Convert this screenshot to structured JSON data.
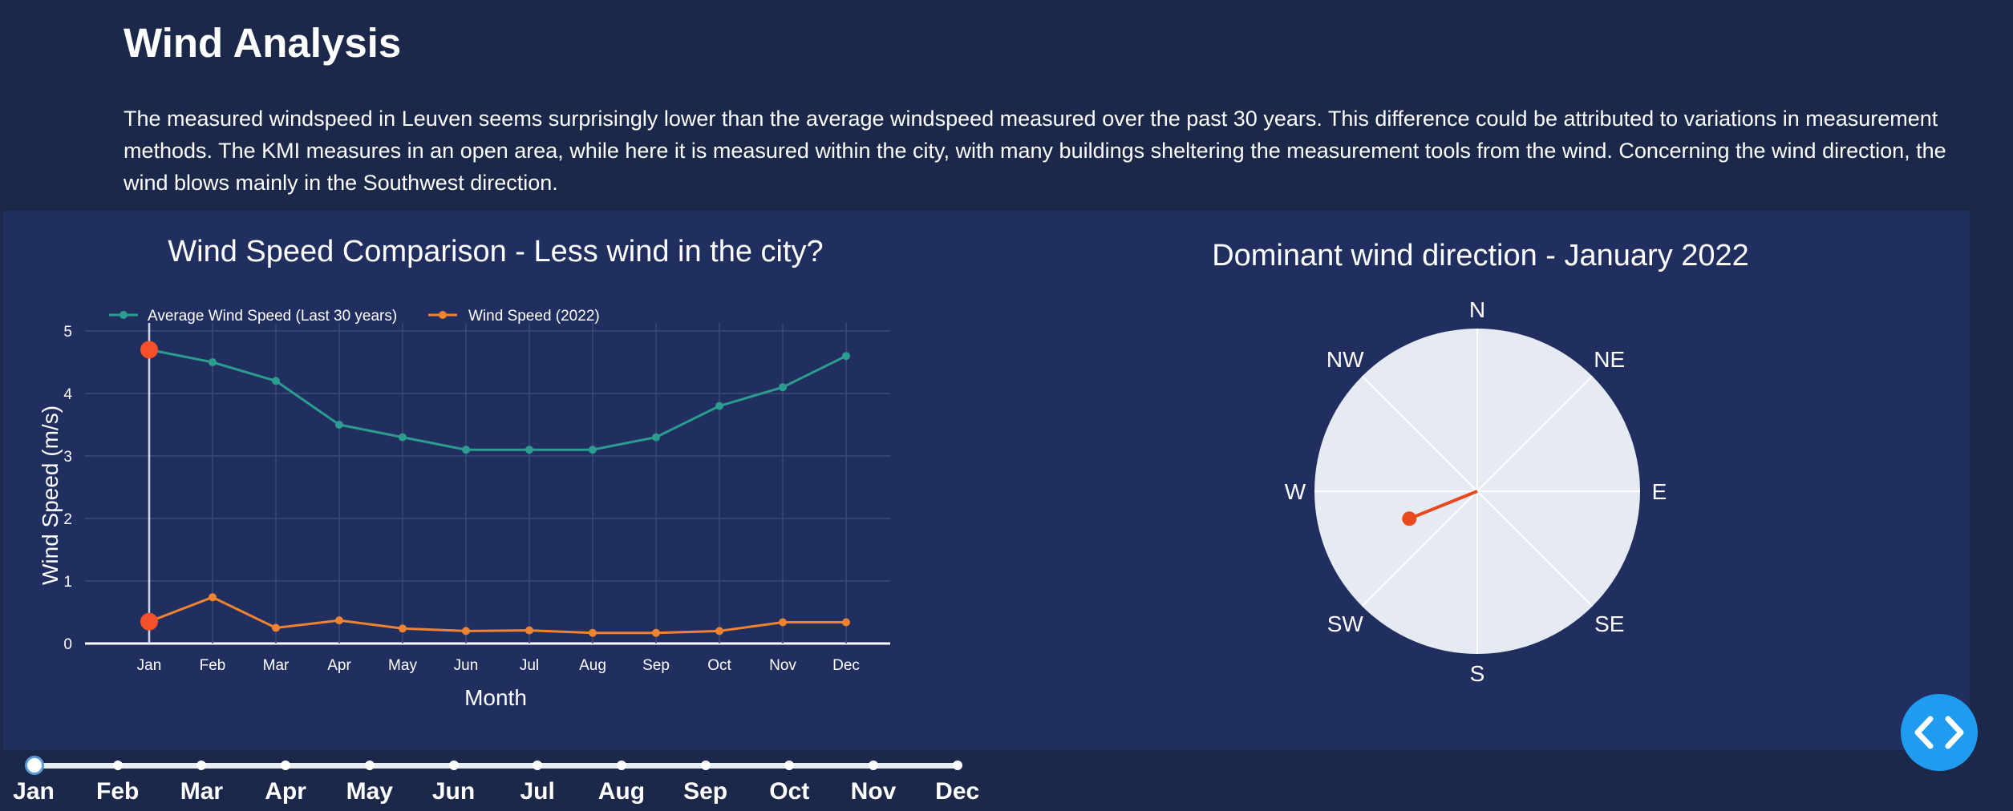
{
  "page": {
    "title": "Wind Analysis",
    "intro": "The measured windspeed in Leuven seems surprisingly lower than the average windspeed measured over the past 30 years. This difference could be attributed to variations in measurement methods. The KMI measures in an open area, while here it is measured within the city, with many buildings sheltering the measurement tools from the wind. Concerning the wind direction, the wind blows mainly in the Southwest direction."
  },
  "colors": {
    "average": "#2a9d8f",
    "current": "#f0832f",
    "highlight": "#f5502a",
    "needle": "#e8491d",
    "polar_bg": "#e5eaf3"
  },
  "chart_data": [
    {
      "type": "line",
      "title": "Wind Speed Comparison - Less wind in the city?",
      "xlabel": "Month",
      "ylabel": "Wind Speed (m/s)",
      "categories": [
        "Jan",
        "Feb",
        "Mar",
        "Apr",
        "May",
        "Jun",
        "Jul",
        "Aug",
        "Sep",
        "Oct",
        "Nov",
        "Dec"
      ],
      "yticks": [
        "0",
        "1",
        "2",
        "3",
        "4",
        "5"
      ],
      "ylim": [
        0,
        5
      ],
      "grid": true,
      "legend": "top-left",
      "highlight_month": "Jan",
      "series": [
        {
          "name": "Average Wind Speed (Last 30 years)",
          "values": [
            4.7,
            4.5,
            4.2,
            3.5,
            3.3,
            3.1,
            3.1,
            3.1,
            3.3,
            3.8,
            4.1,
            4.6
          ]
        },
        {
          "name": "Wind Speed (2022)",
          "values": [
            0.35,
            0.74,
            0.25,
            0.37,
            0.24,
            0.2,
            0.21,
            0.17,
            0.17,
            0.2,
            0.34,
            0.34
          ]
        }
      ]
    },
    {
      "type": "polar",
      "title": "Dominant wind direction - January 2022",
      "directions": [
        "N",
        "NE",
        "E",
        "SE",
        "S",
        "SW",
        "W",
        "NW"
      ],
      "dominant_direction_deg": 248,
      "dominant_magnitude_fraction": 0.45
    }
  ],
  "slider": {
    "labels": [
      "Jan",
      "Feb",
      "Mar",
      "Apr",
      "May",
      "Jun",
      "Jul",
      "Aug",
      "Sep",
      "Oct",
      "Nov",
      "Dec"
    ],
    "selected": "Jan"
  },
  "code_button": {
    "icon": "code-brackets-icon"
  }
}
